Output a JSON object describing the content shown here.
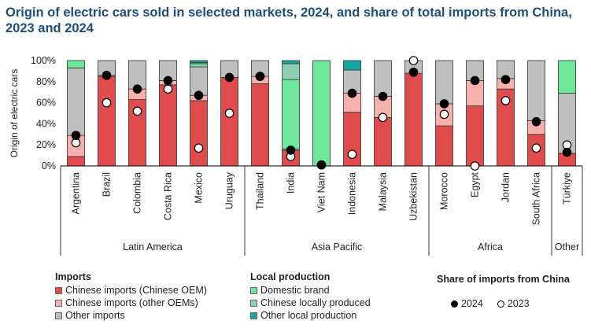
{
  "chart_data": {
    "type": "bar",
    "stacked": true,
    "title": "Origin of electric cars sold in selected markets, 2024, and share of total imports from China, 2023 and 2024",
    "ylabel": "Origin of electric cars",
    "ylim": [
      0,
      100
    ],
    "yticks": [
      "0%",
      "20%",
      "40%",
      "60%",
      "80%",
      "100%"
    ],
    "categories": [
      "Argentina",
      "Brazil",
      "Colombia",
      "Costa Rica",
      "Mexico",
      "Uruguay",
      "Thailand",
      "India",
      "Viet Nam",
      "Indonesia",
      "Malaysia",
      "Uzbekistan",
      "Morocco",
      "Egypt",
      "Jordan",
      "South Africa",
      "Türkiye"
    ],
    "series": [
      {
        "name": "Chinese imports (Chinese OEM)",
        "color": "#e04b4b",
        "values": [
          9,
          85,
          63,
          77,
          62,
          84,
          78,
          15,
          0,
          51,
          46,
          88,
          38,
          57,
          73,
          30,
          12
        ]
      },
      {
        "name": "Chinese imports (other OEMs)",
        "color": "#f6b1ac",
        "values": [
          20,
          1,
          10,
          4,
          5,
          0,
          7,
          0,
          0,
          18,
          20,
          0,
          21,
          24,
          10,
          13,
          0
        ]
      },
      {
        "name": "Other imports",
        "color": "#bfbfbf",
        "values": [
          64,
          14,
          27,
          19,
          27,
          16,
          15,
          1,
          0,
          22,
          34,
          12,
          41,
          19,
          17,
          57,
          57
        ]
      },
      {
        "name": "Domestic brand",
        "color": "#6ee79a",
        "values": [
          7,
          0,
          0,
          0,
          3,
          0,
          0,
          66,
          100,
          0,
          0,
          0,
          0,
          0,
          0,
          0,
          31
        ]
      },
      {
        "name": "Chinese locally produced",
        "color": "#8fd0b2",
        "values": [
          0,
          0,
          0,
          0,
          1,
          0,
          0,
          15,
          0,
          0,
          0,
          0,
          0,
          0,
          0,
          0,
          0
        ]
      },
      {
        "name": "Other local production",
        "color": "#17a5a3",
        "values": [
          0,
          0,
          0,
          0,
          2,
          0,
          0,
          3,
          0,
          9,
          0,
          0,
          0,
          0,
          0,
          0,
          0
        ]
      }
    ],
    "markers": [
      {
        "name": "2024",
        "style": "filled",
        "values": [
          29,
          86,
          73,
          81,
          67,
          84,
          85,
          15,
          1,
          69,
          66,
          89,
          59,
          81,
          82,
          42,
          13
        ]
      },
      {
        "name": "2023",
        "style": "hollow",
        "values": [
          22,
          60,
          52,
          73,
          17,
          50,
          85,
          9,
          1,
          11,
          46,
          100,
          49,
          0,
          62,
          17,
          20
        ]
      }
    ],
    "groups": [
      {
        "label": "Latin America",
        "start": 0,
        "end": 5
      },
      {
        "label": "Asia Pacific",
        "start": 6,
        "end": 11
      },
      {
        "label": "Africa",
        "start": 12,
        "end": 15
      },
      {
        "label": "Other",
        "start": 16,
        "end": 16
      }
    ]
  },
  "legend": {
    "imports_heading": "Imports",
    "imports": [
      "Chinese imports (Chinese OEM)",
      "Chinese imports (other OEMs)",
      "Other imports"
    ],
    "local_heading": "Local production",
    "local": [
      "Domestic brand",
      "Chinese locally produced",
      "Other local production"
    ],
    "share_heading": "Share of imports from China",
    "share": [
      "2024",
      "2023"
    ]
  }
}
